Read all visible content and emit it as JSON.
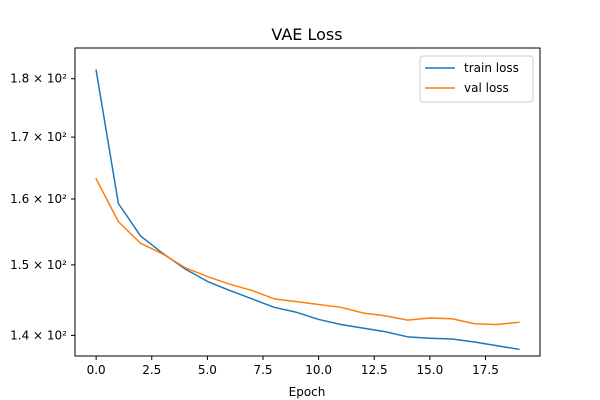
{
  "chart_data": {
    "type": "line",
    "title": "VAE Loss",
    "xlabel": "Epoch",
    "ylabel": "",
    "yscale": "log",
    "xlim": [
      -0.95,
      19.95
    ],
    "ylim": [
      137.2,
      185.5
    ],
    "x_ticks": [
      0.0,
      2.5,
      5.0,
      7.5,
      10.0,
      12.5,
      15.0,
      17.5
    ],
    "x_tick_labels": [
      "0.0",
      "2.5",
      "5.0",
      "7.5",
      "10.0",
      "12.5",
      "15.0",
      "17.5"
    ],
    "y_ticks": [
      140,
      150,
      160,
      170,
      180
    ],
    "y_tick_labels": [
      "1.4 × 10²",
      "1.5 × 10²",
      "1.6 × 10²",
      "1.7 × 10²",
      "1.8 × 10²"
    ],
    "grid": false,
    "legend_position": "top-right",
    "x": [
      0,
      1,
      2,
      3,
      4,
      5,
      6,
      7,
      8,
      9,
      10,
      11,
      12,
      13,
      14,
      15,
      16,
      17,
      18,
      19
    ],
    "series": [
      {
        "name": "train loss",
        "color": "#1f77b4",
        "values": [
          181.5,
          159.3,
          154.3,
          151.7,
          149.4,
          147.6,
          146.3,
          145.1,
          143.9,
          143.2,
          142.2,
          141.5,
          141.0,
          140.5,
          139.8,
          139.6,
          139.5,
          139.1,
          138.6,
          138.1
        ]
      },
      {
        "name": "val loss",
        "color": "#ff7f0e",
        "values": [
          163.2,
          156.5,
          153.2,
          151.6,
          149.6,
          148.3,
          147.2,
          146.3,
          145.1,
          144.7,
          144.3,
          143.9,
          143.1,
          142.7,
          142.1,
          142.4,
          142.3,
          141.6,
          141.5,
          141.8
        ]
      }
    ]
  }
}
